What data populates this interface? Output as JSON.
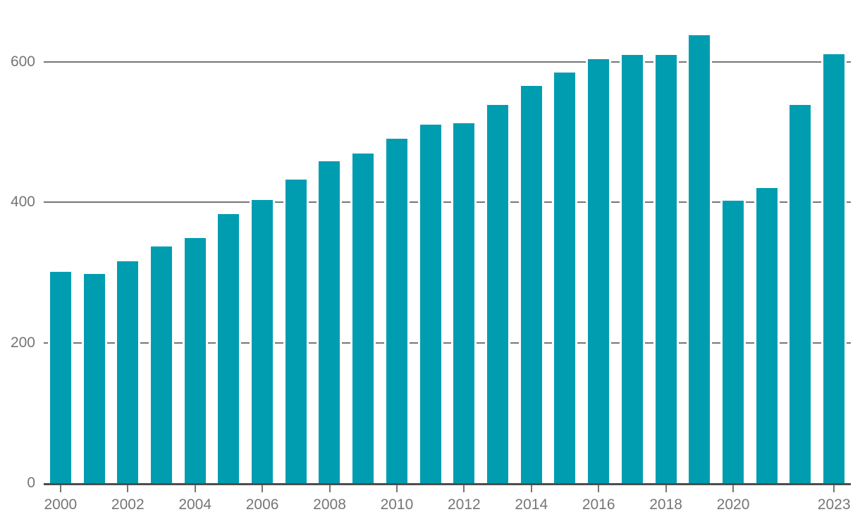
{
  "chart_data": {
    "type": "bar",
    "title": "",
    "xlabel": "",
    "ylabel": "",
    "categories": [
      2000,
      2001,
      2002,
      2003,
      2004,
      2005,
      2006,
      2007,
      2008,
      2009,
      2010,
      2011,
      2012,
      2013,
      2014,
      2015,
      2016,
      2017,
      2018,
      2019,
      2020,
      2021,
      2022,
      2023
    ],
    "values": [
      301,
      298,
      316,
      337,
      349,
      383,
      403,
      432,
      459,
      470,
      491,
      511,
      513,
      539,
      566,
      585,
      604,
      610,
      610,
      638,
      402,
      420,
      539,
      611
    ],
    "ylim": [
      0,
      650
    ],
    "yticks": [
      0,
      200,
      400,
      600
    ],
    "ytick_labels": [
      "0",
      "200",
      "400",
      "600"
    ],
    "xtick_labels": [
      "2000",
      "2002",
      "2004",
      "2006",
      "2008",
      "2010",
      "2012",
      "2014",
      "2016",
      "2018",
      "2020",
      "2023"
    ],
    "grid": "horizontal",
    "legend": "none"
  },
  "colors": {
    "bar": "#009db1",
    "gridline": "#757575",
    "axis_line": "#4d4d4d",
    "tick": "#767676",
    "label": "#767676",
    "background": "#ffffff"
  }
}
